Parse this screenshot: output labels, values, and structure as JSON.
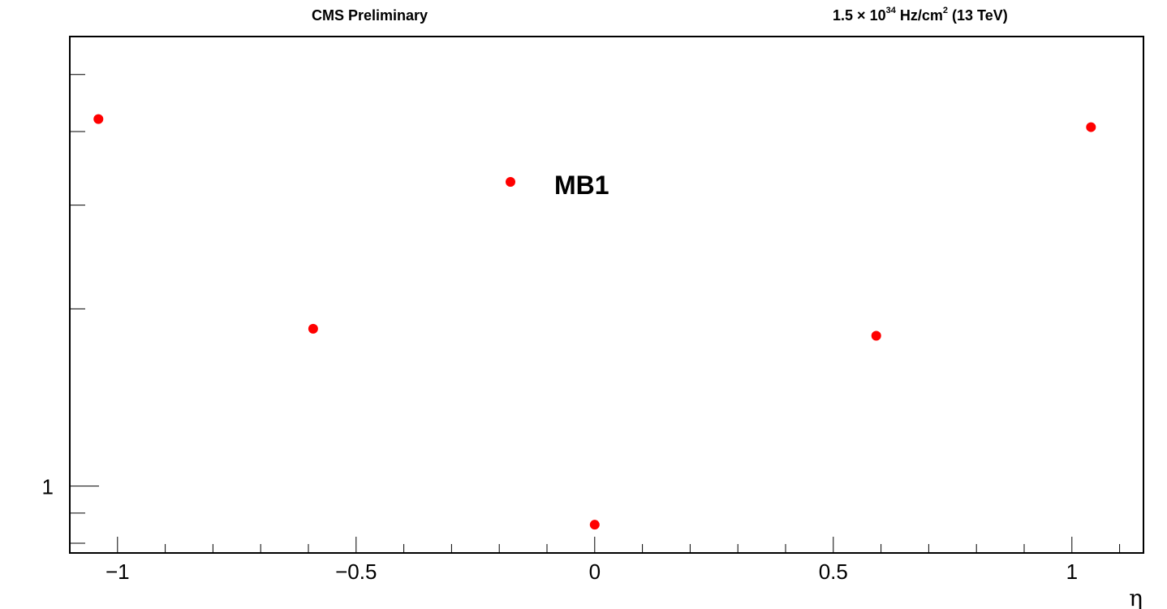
{
  "header": {
    "left": "CMS Preliminary",
    "right_prefix": "1.5",
    "right_times": "×",
    "right_base": "10",
    "right_exp": "34",
    "right_unit": "Hz/cm",
    "right_unit_exp": "2",
    "right_energy": "(13 TeV)"
  },
  "chart_data": {
    "type": "scatter",
    "title": "",
    "xlabel": "η",
    "ylabel": "",
    "xlim": [
      -1.1,
      1.15
    ],
    "y_scale": "log",
    "ylim": [
      0.77,
      5.8
    ],
    "x_ticks": [
      {
        "value": -1,
        "label": "−1"
      },
      {
        "value": -0.5,
        "label": "−0.5"
      },
      {
        "value": 0,
        "label": "0"
      },
      {
        "value": 0.5,
        "label": "0.5"
      },
      {
        "value": 1,
        "label": "1"
      }
    ],
    "y_ticks": [
      {
        "value": 1,
        "label": "1"
      }
    ],
    "grid": false,
    "legend": {
      "position": "top-center"
    },
    "series": [
      {
        "name": "MB1",
        "color": "#ff0000",
        "points": [
          {
            "x": -1.04,
            "y": 4.2
          },
          {
            "x": -0.59,
            "y": 1.85
          },
          {
            "x": 0.0,
            "y": 0.86
          },
          {
            "x": 0.59,
            "y": 1.8
          },
          {
            "x": 1.04,
            "y": 4.07
          }
        ]
      }
    ]
  }
}
